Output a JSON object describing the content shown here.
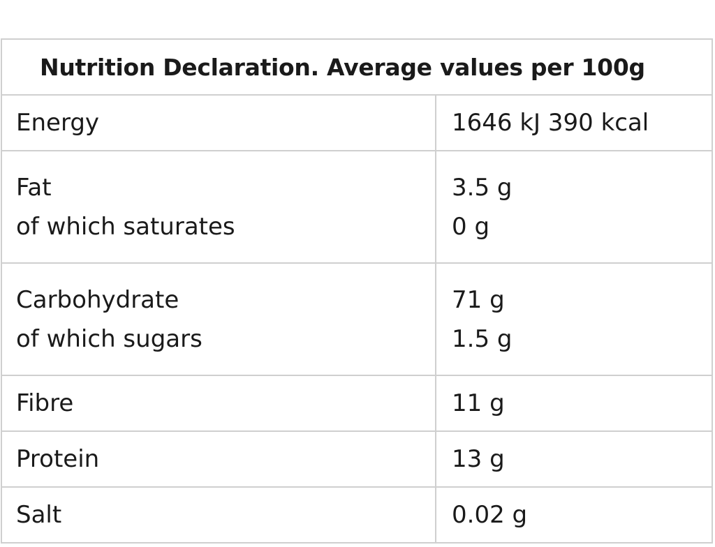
{
  "table": {
    "title": "Nutrition Declaration. Average values per 100g",
    "rows": [
      {
        "name": [
          "Energy"
        ],
        "value": [
          "1646 kJ 390 kcal"
        ]
      },
      {
        "name": [
          "Fat",
          "of which saturates"
        ],
        "value": [
          "3.5 g",
          "0 g"
        ]
      },
      {
        "name": [
          "Carbohydrate",
          "of which sugars"
        ],
        "value": [
          "71 g",
          "1.5 g"
        ]
      },
      {
        "name": [
          "Fibre"
        ],
        "value": [
          "11 g"
        ]
      },
      {
        "name": [
          "Protein"
        ],
        "value": [
          "13 g"
        ]
      },
      {
        "name": [
          "Salt"
        ],
        "value": [
          "0.02 g"
        ]
      }
    ]
  }
}
